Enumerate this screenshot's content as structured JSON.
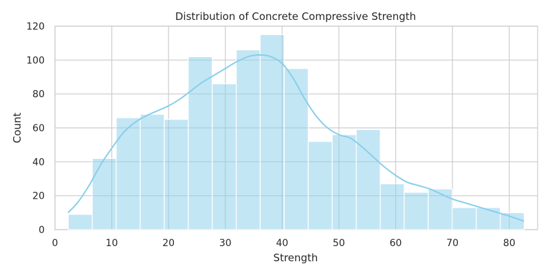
{
  "chart_data": {
    "type": "bar",
    "subtype": "histogram_with_kde",
    "title": "Distribution of Concrete Compressive Strength",
    "xlabel": "Strength",
    "ylabel": "Count",
    "xlim": [
      0,
      85
    ],
    "ylim": [
      0,
      120
    ],
    "xticks": [
      0,
      10,
      20,
      30,
      40,
      50,
      60,
      70,
      80
    ],
    "yticks": [
      0,
      20,
      40,
      60,
      80,
      100,
      120
    ],
    "grid": true,
    "legend": "none",
    "bins": [
      {
        "start": 2.33,
        "end": 6.56,
        "count": 9
      },
      {
        "start": 6.56,
        "end": 10.78,
        "count": 42
      },
      {
        "start": 10.78,
        "end": 15.01,
        "count": 66
      },
      {
        "start": 15.01,
        "end": 19.24,
        "count": 68
      },
      {
        "start": 19.24,
        "end": 23.46,
        "count": 65
      },
      {
        "start": 23.46,
        "end": 27.69,
        "count": 102
      },
      {
        "start": 27.69,
        "end": 31.92,
        "count": 86
      },
      {
        "start": 31.92,
        "end": 36.14,
        "count": 106
      },
      {
        "start": 36.14,
        "end": 40.37,
        "count": 115
      },
      {
        "start": 40.37,
        "end": 44.6,
        "count": 95
      },
      {
        "start": 44.6,
        "end": 48.82,
        "count": 52
      },
      {
        "start": 48.82,
        "end": 53.05,
        "count": 56
      },
      {
        "start": 53.05,
        "end": 57.28,
        "count": 59
      },
      {
        "start": 57.28,
        "end": 61.5,
        "count": 27
      },
      {
        "start": 61.5,
        "end": 65.73,
        "count": 22
      },
      {
        "start": 65.73,
        "end": 69.96,
        "count": 24
      },
      {
        "start": 69.96,
        "end": 74.18,
        "count": 13
      },
      {
        "start": 74.18,
        "end": 78.41,
        "count": 13
      },
      {
        "start": 78.41,
        "end": 82.64,
        "count": 10
      }
    ],
    "kde": {
      "x": [
        2.3,
        4,
        6,
        8,
        10,
        12,
        14,
        16,
        18,
        20,
        22,
        24,
        26,
        28,
        30,
        32,
        34,
        36,
        38,
        40,
        42,
        44,
        46,
        48,
        50,
        52,
        54,
        56,
        58,
        60,
        62,
        64,
        66,
        68,
        70,
        72,
        74,
        76,
        78,
        80,
        82.6
      ],
      "y": [
        10,
        16,
        26,
        38,
        48,
        57,
        63,
        67,
        70,
        73,
        77,
        82,
        87,
        91,
        95,
        99,
        102,
        103,
        102,
        98,
        89,
        77,
        67,
        60,
        56,
        54,
        49,
        43,
        37,
        32,
        28,
        26,
        24,
        21,
        18,
        16,
        14,
        12,
        10,
        8,
        5
      ]
    },
    "colors": {
      "bar_fill": "#87ceeb",
      "bar_edge": "#ffffff",
      "kde_line": "#87ceeb",
      "grid": "#cccccc",
      "text": "#262626"
    }
  }
}
